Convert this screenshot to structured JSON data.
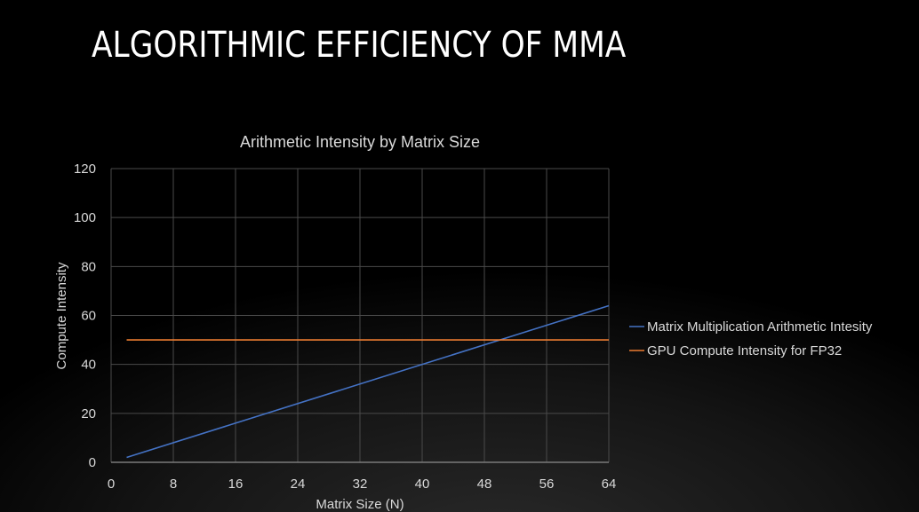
{
  "slide": {
    "title": "ALGORITHMIC EFFICIENCY OF MMA"
  },
  "chart_data": {
    "type": "line",
    "title": "Arithmetic Intensity by Matrix Size",
    "xlabel": "Matrix Size (N)",
    "ylabel": "Compute Intensity",
    "xlim": [
      0,
      64
    ],
    "ylim": [
      0,
      120
    ],
    "xticks": [
      0,
      8,
      16,
      24,
      32,
      40,
      48,
      56,
      64
    ],
    "yticks": [
      0,
      20,
      40,
      60,
      80,
      100,
      120
    ],
    "grid": true,
    "legend_position": "right",
    "series": [
      {
        "name": "Matrix Multiplication Arithmetic Intesity",
        "color": "#4472c4",
        "x": [
          2,
          64
        ],
        "y": [
          2,
          64
        ]
      },
      {
        "name": "GPU Compute Intensity for FP32",
        "color": "#ed7d31",
        "x": [
          2,
          64
        ],
        "y": [
          50,
          50
        ]
      }
    ]
  }
}
